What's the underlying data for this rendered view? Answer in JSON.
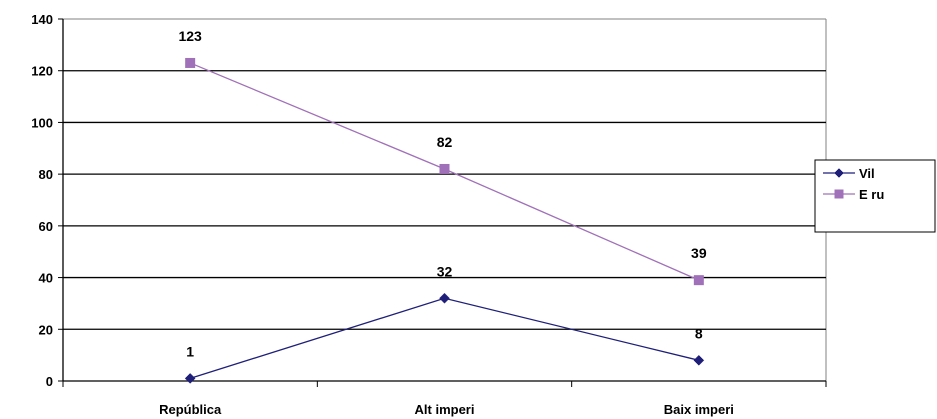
{
  "chart_data": {
    "type": "line",
    "categories": [
      "República",
      "Alt imperi",
      "Baix imperi"
    ],
    "series": [
      {
        "name": "Vil",
        "values": [
          1,
          32,
          8
        ],
        "color": "#1f1f7a",
        "marker": "diamond"
      },
      {
        "name": "E ru",
        "values": [
          123,
          82,
          39
        ],
        "color": "#a070b8",
        "marker": "square"
      }
    ],
    "ylim": [
      0,
      140
    ],
    "yticks": [
      0,
      20,
      40,
      60,
      80,
      100,
      120,
      140
    ],
    "grid": true,
    "legend": "right",
    "data_labels": true
  }
}
